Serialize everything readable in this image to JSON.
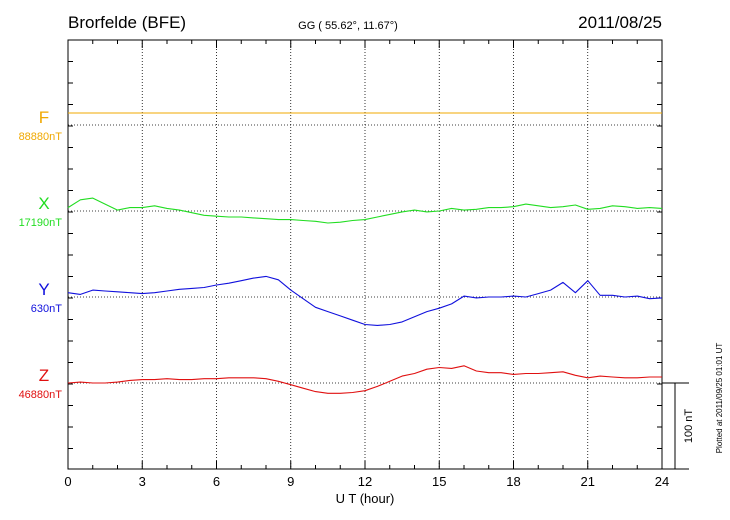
{
  "chart_data": {
    "type": "line",
    "title": "Brorfelde (BFE)",
    "subtitle": "GG ( 55.62°,  11.67°)",
    "date": "2011/08/25",
    "xlabel": "U T (hour)",
    "xlim": [
      0,
      24
    ],
    "xticks": [
      "0",
      "3",
      "6",
      "9",
      "12",
      "15",
      "18",
      "21",
      "24"
    ],
    "scale_label": "100 nT",
    "scale_nT": 100,
    "footer": "Plotted at 2011/09/25 01:01  UT",
    "grid": true,
    "series": [
      {
        "name": "F",
        "baseline_label": "88880nT",
        "baseline_nT": 88880,
        "color": "#f0a800",
        "x": [
          0,
          24
        ],
        "offset_nT": [
          14,
          14
        ]
      },
      {
        "name": "X",
        "baseline_label": "17190nT",
        "baseline_nT": 17190,
        "color": "#22dd22",
        "x": [
          0,
          0.5,
          1,
          1.5,
          2,
          2.5,
          3,
          3.5,
          4,
          4.5,
          5,
          5.5,
          6,
          6.5,
          7,
          7.5,
          8,
          8.5,
          9,
          9.5,
          10,
          10.5,
          11,
          11.5,
          12,
          12.5,
          13,
          13.5,
          14,
          14.5,
          15,
          15.5,
          16,
          16.5,
          17,
          17.5,
          18,
          18.5,
          19,
          19.5,
          20,
          20.5,
          21,
          21.5,
          22,
          22.5,
          23,
          23.5,
          24
        ],
        "offset_nT": [
          4,
          13,
          15,
          8,
          1,
          4,
          4,
          6,
          3,
          1,
          -2,
          -5,
          -6,
          -7,
          -7,
          -8,
          -9,
          -10,
          -10,
          -11,
          -12,
          -14,
          -13,
          -11,
          -10,
          -7,
          -4,
          -1,
          1,
          -1,
          0,
          3,
          1,
          2,
          4,
          4,
          5,
          8,
          6,
          4,
          5,
          7,
          2,
          3,
          6,
          5,
          3,
          4,
          3
        ]
      },
      {
        "name": "Y",
        "baseline_label": "630nT",
        "baseline_nT": 630,
        "color": "#1010dd",
        "x": [
          0,
          0.5,
          1,
          1.5,
          2,
          2.5,
          3,
          3.5,
          4,
          4.5,
          5,
          5.5,
          6,
          6.5,
          7,
          7.5,
          8,
          8.5,
          9,
          9.5,
          10,
          10.5,
          11,
          11.5,
          12,
          12.5,
          13,
          13.5,
          14,
          14.5,
          15,
          15.5,
          16,
          16.5,
          17,
          17.5,
          18,
          18.5,
          19,
          19.5,
          20,
          20.5,
          21,
          21.5,
          22,
          22.5,
          23,
          23.5,
          24
        ],
        "offset_nT": [
          5,
          3,
          8,
          7,
          6,
          5,
          4,
          5,
          7,
          9,
          10,
          11,
          14,
          16,
          19,
          22,
          24,
          20,
          8,
          -2,
          -12,
          -17,
          -22,
          -27,
          -32,
          -33,
          -32,
          -29,
          -23,
          -17,
          -13,
          -8,
          1,
          -1,
          0,
          0,
          1,
          0,
          4,
          8,
          17,
          5,
          19,
          2,
          2,
          0,
          1,
          -2,
          -1
        ]
      },
      {
        "name": "Z",
        "baseline_label": "46880nT",
        "baseline_nT": 46880,
        "color": "#e01010",
        "x": [
          0,
          0.5,
          1,
          1.5,
          2,
          2.5,
          3,
          3.5,
          4,
          4.5,
          5,
          5.5,
          6,
          6.5,
          7,
          7.5,
          8,
          8.5,
          9,
          9.5,
          10,
          10.5,
          11,
          11.5,
          12,
          12.5,
          13,
          13.5,
          14,
          14.5,
          15,
          15.5,
          16,
          16.5,
          17,
          17.5,
          18,
          18.5,
          19,
          19.5,
          20,
          20.5,
          21,
          21.5,
          22,
          22.5,
          23,
          23.5,
          24
        ],
        "offset_nT": [
          0,
          1,
          0,
          0,
          1,
          3,
          4,
          4,
          5,
          4,
          4,
          5,
          5,
          6,
          6,
          6,
          5,
          2,
          -2,
          -6,
          -10,
          -12,
          -12,
          -11,
          -9,
          -4,
          2,
          8,
          11,
          16,
          18,
          17,
          20,
          14,
          12,
          12,
          10,
          11,
          11,
          12,
          13,
          9,
          6,
          8,
          7,
          6,
          6,
          7,
          7
        ]
      }
    ]
  }
}
